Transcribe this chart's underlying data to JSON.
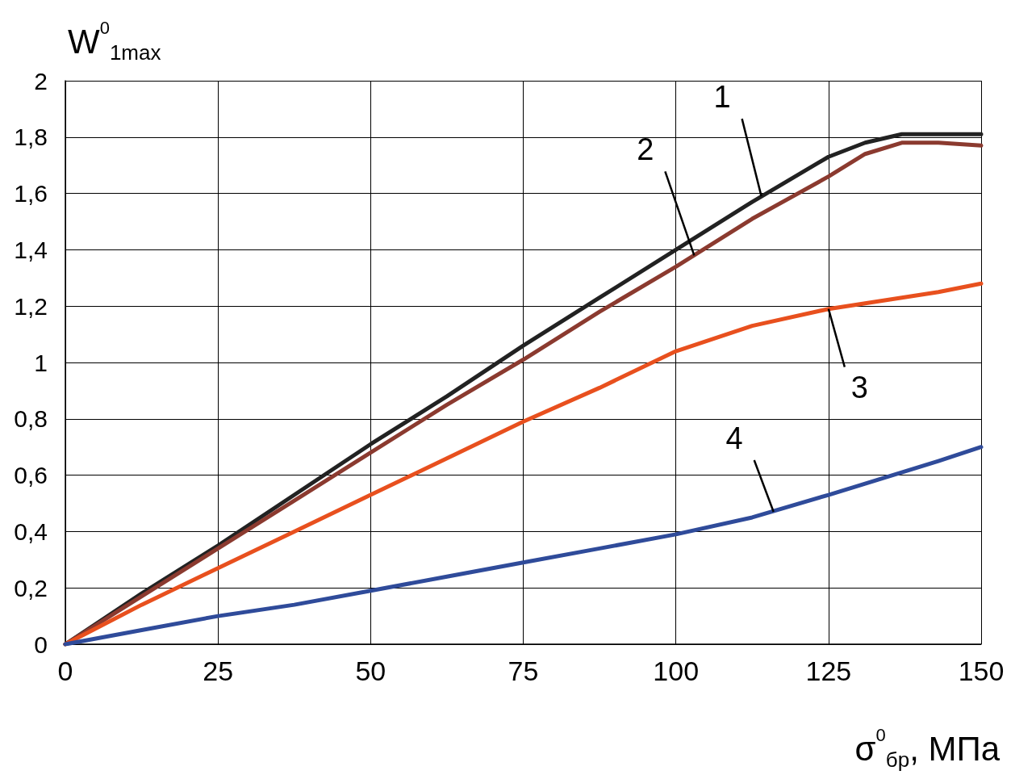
{
  "chart_data": {
    "type": "line",
    "xlabel": "σ$^{0}$$_{бр}$, МПа",
    "ylabel": "W$^{0}$$_{1max}$",
    "xlim": [
      0,
      150
    ],
    "xticks": [
      0,
      25,
      50,
      75,
      100,
      125,
      150
    ],
    "ylim": [
      0,
      2
    ],
    "yticks": [
      0,
      {
        "value": 0.2,
        "label": "0,2"
      },
      {
        "value": 0.4,
        "label": "0,4"
      },
      {
        "value": 0.6,
        "label": "0,6"
      },
      {
        "value": 0.8,
        "label": "0,8"
      },
      1,
      {
        "value": 1.2,
        "label": "1,2"
      },
      {
        "value": 1.4,
        "label": "1,4"
      },
      {
        "value": 1.6,
        "label": "1,6"
      },
      {
        "value": 1.8,
        "label": "1,8"
      },
      2
    ],
    "grid": true,
    "marker": "none",
    "line_style": "solid",
    "x": [
      0,
      12.5,
      25,
      37.5,
      50,
      62.5,
      75,
      87.5,
      100,
      112.5,
      125,
      131,
      137,
      143,
      150
    ],
    "series": [
      {
        "color": "#222222",
        "values": [
          0,
          0.18,
          0.35,
          0.53,
          0.71,
          0.88,
          1.06,
          1.23,
          1.4,
          1.57,
          1.73,
          1.78,
          1.81,
          1.81,
          1.81
        ]
      },
      {
        "color": "#8b3a2f",
        "values": [
          0,
          0.17,
          0.34,
          0.51,
          0.68,
          0.85,
          1.01,
          1.18,
          1.34,
          1.51,
          1.66,
          1.74,
          1.78,
          1.78,
          1.77
        ]
      },
      {
        "color": "#e8501e",
        "values": [
          0,
          0.14,
          0.27,
          0.4,
          0.53,
          0.66,
          0.79,
          0.91,
          1.04,
          1.13,
          1.19,
          1.21,
          1.23,
          1.25,
          1.28
        ]
      },
      {
        "color": "#2f4b9a",
        "values": [
          0,
          0.05,
          0.1,
          0.14,
          0.19,
          0.24,
          0.29,
          0.34,
          0.39,
          0.45,
          0.53,
          0.57,
          0.61,
          0.65,
          0.7
        ]
      }
    ],
    "annotations": [
      {
        "text": "1",
        "x": 114,
        "y": 1.59
      },
      {
        "text": "2",
        "x": 103,
        "y": 1.38
      },
      {
        "text": "3",
        "x": 125,
        "y": 1.19
      },
      {
        "text": "4",
        "x": 116,
        "y": 0.47
      }
    ]
  }
}
